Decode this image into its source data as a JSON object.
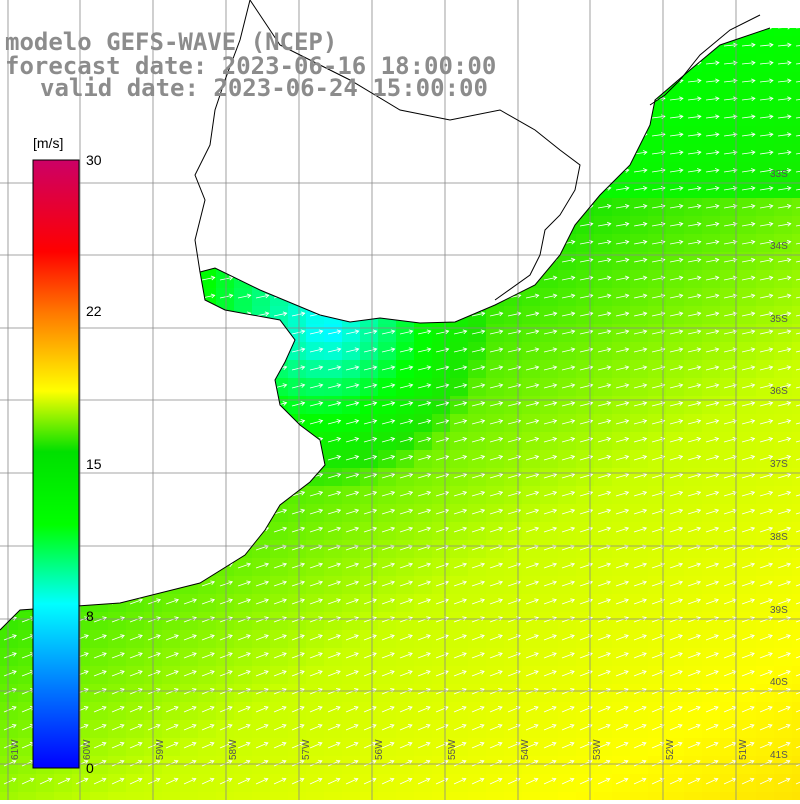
{
  "title": {
    "line1": "modelo GEFS-WAVE (NCEP)",
    "line2": "forecast date: 2023-06-16 18:00:00",
    "line3": "valid date: 2023-06-24 15:00:00"
  },
  "legend": {
    "unit": "[m/s]",
    "ticks": [
      "30",
      "22",
      "15",
      "8",
      "0"
    ],
    "tick_values": [
      30,
      22,
      15,
      8,
      0
    ],
    "colors": [
      "#0000ff",
      "#0077ff",
      "#00ffff",
      "#00ff00",
      "#ffff00",
      "#ff7700",
      "#ff0000",
      "#cc0066"
    ]
  },
  "map": {
    "lat_labels": [
      "33S",
      "34S",
      "35S",
      "36S",
      "37S",
      "38S",
      "39S",
      "40S",
      "41S"
    ],
    "lon_labels": [
      "61W",
      "60W",
      "59W",
      "58W",
      "57W",
      "56W",
      "55W",
      "54W",
      "53W",
      "52W",
      "51W"
    ],
    "land_color": "#ffffff",
    "coast_color": "#000000",
    "grid_color": "#8a8a8a",
    "arrow_color": "#ffffff",
    "field_description": "wind speed with direction arrows"
  }
}
